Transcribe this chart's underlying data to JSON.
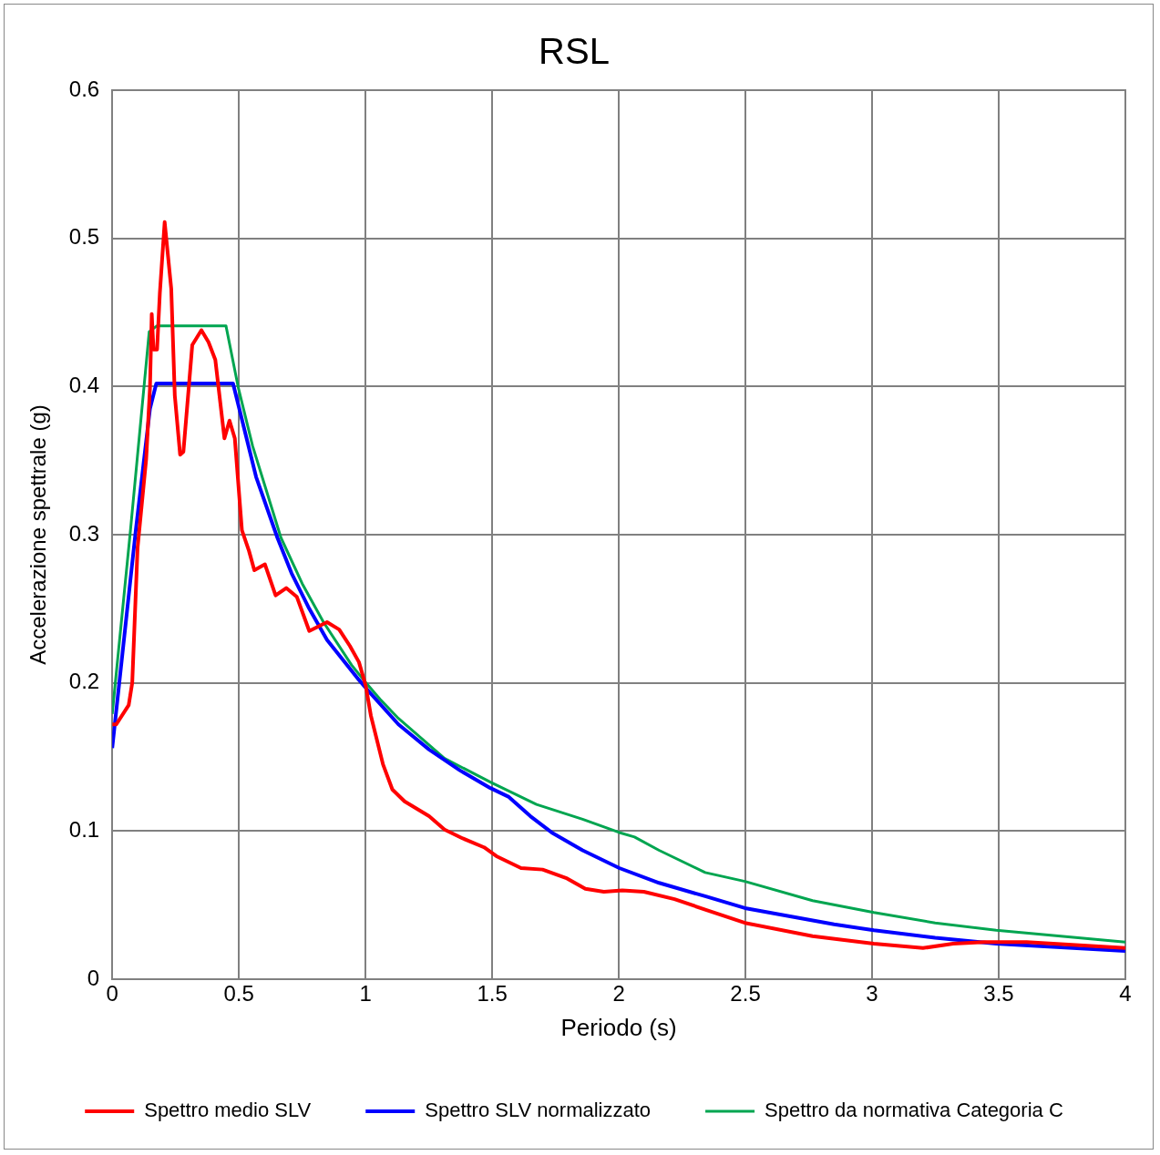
{
  "chart_data": {
    "type": "line",
    "title": "RSL",
    "xlabel": "Periodo (s)",
    "ylabel": "Accelerazione spettrale (g)",
    "xlim": [
      0,
      4
    ],
    "xticks": [
      0,
      0.5,
      1,
      1.5,
      2,
      2.5,
      3,
      3.5,
      4
    ],
    "ylim": [
      0,
      0.6
    ],
    "yticks": [
      0,
      0.1,
      0.2,
      0.3,
      0.4,
      0.5,
      0.6
    ],
    "grid": true,
    "legend": "bottom",
    "marker": "none",
    "line_style": "solid",
    "series": [
      {
        "name": "Spettro medio SLV",
        "color": "#ff0000",
        "x": [
          0,
          0.016,
          0.065,
          0.079,
          0.1,
          0.134,
          0.149,
          0.156,
          0.163,
          0.177,
          0.188,
          0.207,
          0.233,
          0.247,
          0.268,
          0.281,
          0.302,
          0.316,
          0.352,
          0.38,
          0.407,
          0.443,
          0.463,
          0.484,
          0.512,
          0.54,
          0.561,
          0.603,
          0.645,
          0.687,
          0.729,
          0.778,
          0.848,
          0.896,
          0.938,
          0.974,
          1.001,
          1.021,
          1.069,
          1.106,
          1.154,
          1.251,
          1.312,
          1.384,
          1.468,
          1.517,
          1.614,
          1.699,
          1.796,
          1.868,
          1.941,
          2.014,
          2.099,
          2.22,
          2.341,
          2.498,
          2.765,
          3.007,
          3.201,
          3.32,
          3.443,
          3.61,
          4
        ],
        "values": [
          0.172,
          0.172,
          0.185,
          0.2,
          0.291,
          0.351,
          0.399,
          0.449,
          0.425,
          0.425,
          0.463,
          0.511,
          0.466,
          0.394,
          0.354,
          0.356,
          0.399,
          0.428,
          0.438,
          0.43,
          0.418,
          0.365,
          0.377,
          0.365,
          0.303,
          0.289,
          0.276,
          0.28,
          0.259,
          0.264,
          0.258,
          0.235,
          0.241,
          0.236,
          0.225,
          0.214,
          0.198,
          0.178,
          0.145,
          0.128,
          0.12,
          0.11,
          0.101,
          0.095,
          0.089,
          0.083,
          0.075,
          0.074,
          0.068,
          0.061,
          0.059,
          0.06,
          0.059,
          0.054,
          0.047,
          0.038,
          0.029,
          0.024,
          0.021,
          0.024,
          0.025,
          0.025,
          0.021
        ]
      },
      {
        "name": "Spettro SLV normalizzato",
        "color": "#0000ff",
        "x": [
          0,
          0.093,
          0.149,
          0.174,
          0.477,
          0.568,
          0.652,
          0.708,
          0.778,
          0.848,
          0.974,
          1.009,
          1.13,
          1.251,
          1.372,
          1.493,
          1.566,
          1.651,
          1.735,
          1.857,
          2.002,
          2.159,
          2.341,
          2.498,
          2.85,
          3.007,
          3.249,
          3.49,
          4
        ],
        "values": [
          0.156,
          0.303,
          0.385,
          0.402,
          0.402,
          0.339,
          0.298,
          0.274,
          0.25,
          0.229,
          0.202,
          0.195,
          0.172,
          0.155,
          0.141,
          0.129,
          0.123,
          0.11,
          0.099,
          0.087,
          0.075,
          0.065,
          0.056,
          0.048,
          0.037,
          0.033,
          0.028,
          0.024,
          0.019
        ]
      },
      {
        "name": "Spettro da normativa Categoria C",
        "color": "#00a550",
        "x": [
          0,
          0.072,
          0.146,
          0.177,
          0.449,
          0.498,
          0.554,
          0.666,
          0.75,
          0.834,
          0.945,
          0.997,
          1.057,
          1.13,
          1.312,
          1.493,
          1.675,
          1.857,
          2.002,
          2.062,
          2.159,
          2.341,
          2.498,
          2.765,
          3.007,
          3.249,
          3.49,
          4
        ],
        "values": [
          0.179,
          0.303,
          0.437,
          0.441,
          0.441,
          0.399,
          0.36,
          0.298,
          0.267,
          0.241,
          0.212,
          0.201,
          0.189,
          0.176,
          0.149,
          0.133,
          0.118,
          0.108,
          0.099,
          0.096,
          0.087,
          0.072,
          0.066,
          0.053,
          0.045,
          0.038,
          0.033,
          0.025
        ]
      }
    ]
  }
}
